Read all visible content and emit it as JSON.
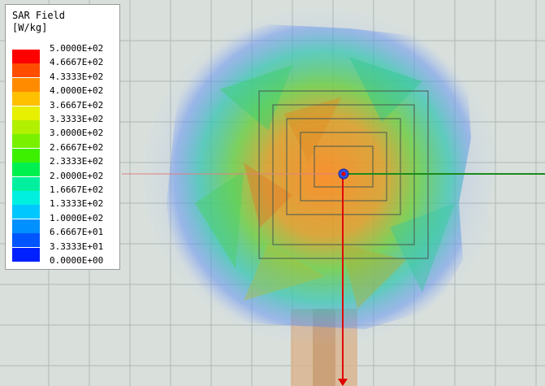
{
  "legend": {
    "title_line1": "SAR Field",
    "title_line2": "[W/kg]",
    "labels": [
      "5.0000E+02",
      "4.6667E+02",
      "4.3333E+02",
      "4.0000E+02",
      "3.6667E+02",
      "3.3333E+02",
      "3.0000E+02",
      "2.6667E+02",
      "2.3333E+02",
      "2.0000E+02",
      "1.6667E+02",
      "1.3333E+02",
      "1.0000E+02",
      "6.6667E+01",
      "3.3333E+01",
      "0.0000E+00"
    ],
    "colors": [
      "#ff0000",
      "#ff4d00",
      "#ff8c00",
      "#ffc000",
      "#e6f000",
      "#b0f000",
      "#78f000",
      "#3cf000",
      "#00f050",
      "#00f0a0",
      "#00f0e0",
      "#00c8ff",
      "#0090ff",
      "#0055ff",
      "#0020ff",
      "#0000ff"
    ]
  },
  "scene": {
    "grid_color": "#aeb8b3",
    "x_axis_color": "#1c8a1c",
    "y_axis_color": "#e00000",
    "feed_color": "#d9b38c"
  }
}
